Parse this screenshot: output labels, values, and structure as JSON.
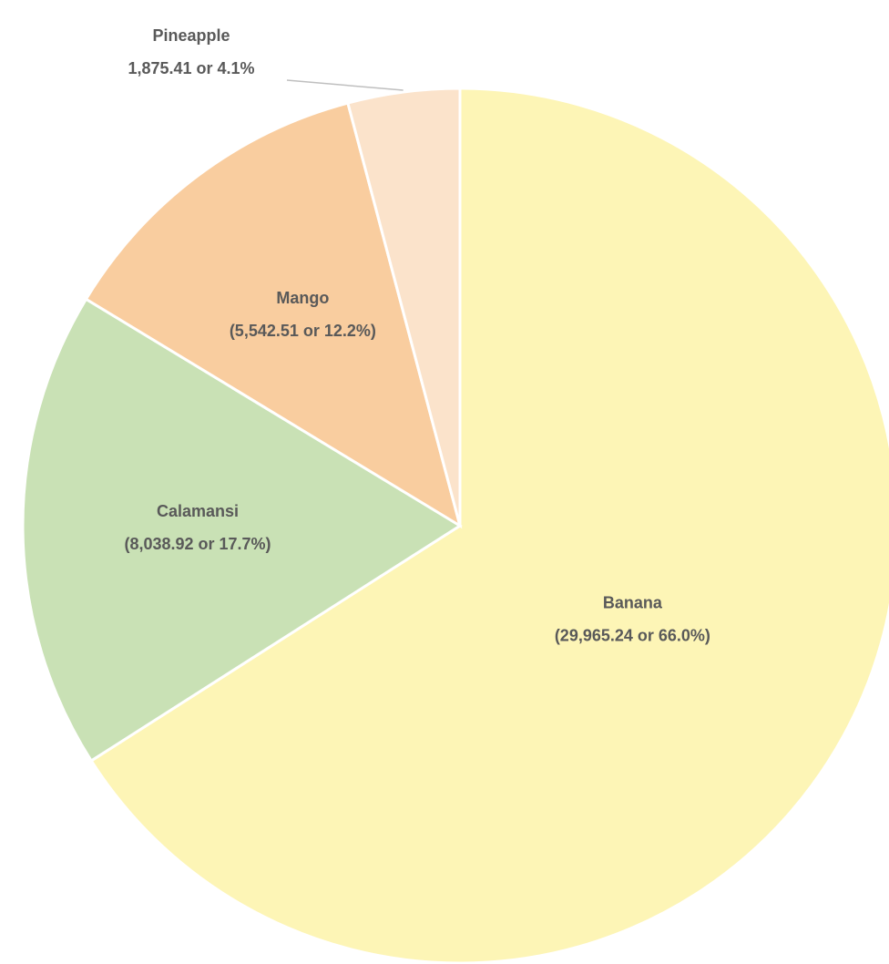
{
  "chart_data": {
    "type": "pie",
    "categories": [
      "Banana",
      "Calamansi",
      "Mango",
      "Pineapple"
    ],
    "values": [
      29965.24,
      8038.92,
      5542.51,
      1875.41
    ],
    "value_labels": [
      "(29,965.24 or 66.0%)",
      "(8,038.92 or 17.7%)",
      "(5,542.51 or 12.2%)",
      "1,875.41 or 4.1%"
    ],
    "colors": [
      "#fdf5b6",
      "#c9e1b5",
      "#f9cd9f",
      "#fbe3cb"
    ]
  }
}
